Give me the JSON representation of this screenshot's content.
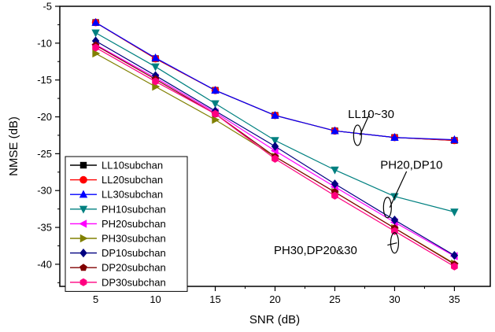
{
  "chart_data": {
    "type": "line",
    "xlabel": "SNR (dB)",
    "ylabel": "NMSE (dB)",
    "xlim": [
      2,
      38
    ],
    "ylim": [
      -43,
      -5
    ],
    "x_ticks": [
      5,
      10,
      15,
      20,
      25,
      30,
      35
    ],
    "y_ticks": [
      -5,
      -10,
      -15,
      -20,
      -25,
      -30,
      -35,
      -40
    ],
    "grid": false,
    "legend_position": "bottom-left",
    "x": [
      5,
      10,
      15,
      20,
      25,
      30,
      35
    ],
    "series": [
      {
        "name": "LL10subchan",
        "marker": "square",
        "color": "#000000",
        "values": [
          -7.2,
          -12.1,
          -16.4,
          -19.8,
          -21.9,
          -22.8,
          -23.2
        ]
      },
      {
        "name": "LL20subchan",
        "marker": "circle",
        "color": "#ff0000",
        "values": [
          -7.2,
          -12.1,
          -16.4,
          -19.8,
          -21.9,
          -22.8,
          -23.2
        ]
      },
      {
        "name": "LL30subchan",
        "marker": "triangle-up",
        "color": "#0000ff",
        "values": [
          -7.2,
          -12.0,
          -16.4,
          -19.8,
          -21.9,
          -22.8,
          -23.1
        ]
      },
      {
        "name": "PH10subchan",
        "marker": "triangle-down",
        "color": "#008080",
        "values": [
          -8.6,
          -13.2,
          -18.2,
          -23.2,
          -27.2,
          -30.8,
          -32.9
        ]
      },
      {
        "name": "PH20subchan",
        "marker": "triangle-left",
        "color": "#ff00ff",
        "values": [
          -10.2,
          -14.7,
          -19.4,
          -24.6,
          -29.5,
          -34.3,
          -38.9
        ]
      },
      {
        "name": "PH30subchan",
        "marker": "triangle-right",
        "color": "#808000",
        "values": [
          -11.4,
          -15.9,
          -20.4,
          -25.4,
          -30.2,
          -35.1,
          -39.9
        ]
      },
      {
        "name": "DP10subchan",
        "marker": "diamond",
        "color": "#000080",
        "values": [
          -9.7,
          -14.4,
          -19.2,
          -24.0,
          -29.1,
          -34.0,
          -38.8
        ]
      },
      {
        "name": "DP20subchan",
        "marker": "pentagon",
        "color": "#800000",
        "values": [
          -10.3,
          -14.9,
          -19.6,
          -25.4,
          -30.2,
          -35.1,
          -40.0
        ]
      },
      {
        "name": "DP30subchan",
        "marker": "hexagon",
        "color": "#ff0080",
        "values": [
          -10.6,
          -15.2,
          -19.6,
          -25.7,
          -30.7,
          -35.5,
          -40.3
        ]
      }
    ],
    "annotations": [
      {
        "text": "LL10~30",
        "x": 26.1,
        "y": -19.6,
        "ellipse_x": 26.9,
        "ellipse_y": -22.5,
        "arrow_to_x": 27.9,
        "arrow_to_y": -19.6
      },
      {
        "text": "PH20,DP10",
        "x": 28.8,
        "y": -26.5,
        "ellipse_x": 29.4,
        "ellipse_y": -32.3,
        "arrow_to_x": 31.0,
        "arrow_to_y": -27.4
      },
      {
        "text": "PH30,DP20&30",
        "x": 19.9,
        "y": -38.1,
        "ellipse_x": 30.0,
        "ellipse_y": -37.1,
        "arrow_to_x": 29.4,
        "arrow_to_y": -37.4
      }
    ]
  }
}
